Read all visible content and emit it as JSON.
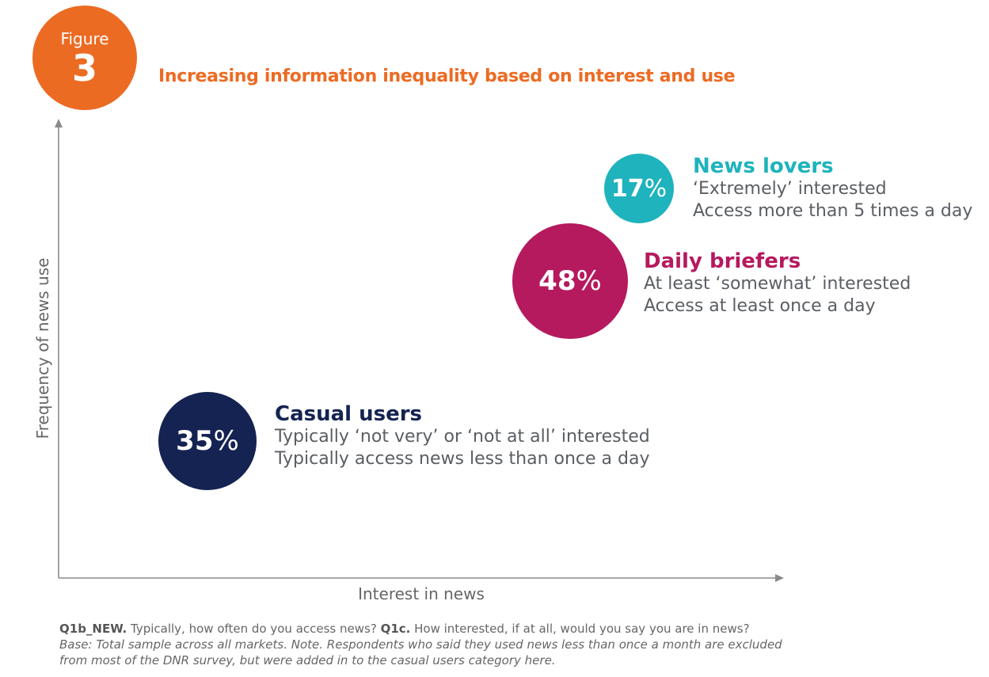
{
  "figure": {
    "label": "Figure",
    "number": "3",
    "color": "#ec6b23"
  },
  "title": "Increasing information inequality based on interest and use",
  "axes": {
    "y_label": "Frequency of news use",
    "x_label": "Interest in news"
  },
  "chart_data": {
    "type": "scatter",
    "title": "Increasing information inequality based on interest and use",
    "xlabel": "Interest in news",
    "ylabel": "Frequency of news use",
    "grid": false,
    "segments": [
      {
        "name": "News lovers",
        "value": 17,
        "unit": "%",
        "color": "#1fb3bd",
        "description": [
          "‘Extremely’ interested",
          "Access more than 5 times a day"
        ]
      },
      {
        "name": "Daily briefers",
        "value": 48,
        "unit": "%",
        "color": "#b5195e",
        "description": [
          "At least ‘somewhat’ interested",
          "Access at least once a day"
        ]
      },
      {
        "name": "Casual users",
        "value": 35,
        "unit": "%",
        "color": "#152352",
        "description": [
          "Typically ‘not very’ or ‘not at all’ interested",
          "Typically access news less than once a day"
        ]
      }
    ]
  },
  "footnote": {
    "q1_code": "Q1b_NEW.",
    "q1_text": " Typically, how often do you access news? ",
    "q2_code": "Q1c.",
    "q2_text": " How interested, if at all, would you say you are in news?",
    "base_line1": "Base: Total sample across all markets. Note. Respondents who said they used news less than once a month are excluded",
    "base_line2": "from most of the DNR survey, but were added in to the casual users category here."
  }
}
